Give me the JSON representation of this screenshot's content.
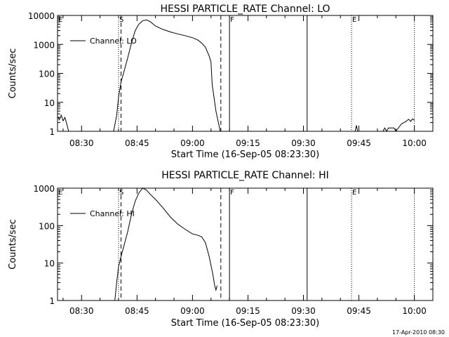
{
  "chart_data": [
    {
      "type": "line",
      "title": "HESSI PARTICLE_RATE Channel: LO",
      "xlabel": "Start Time (16-Sep-05 08:23:30)",
      "ylabel": "Counts/sec",
      "yscale": "log",
      "ylim": [
        1,
        10000
      ],
      "xlim": [
        "08:23:30",
        "10:05:00"
      ],
      "x_ticks": [
        "08:30",
        "08:45",
        "09:00",
        "09:15",
        "09:30",
        "09:45",
        "10:00"
      ],
      "y_ticks": [
        "1",
        "10",
        "100",
        "1000",
        "10000"
      ],
      "legend": {
        "text": "Channel: LO",
        "placement": "top-left"
      },
      "markers": [
        {
          "label": "E",
          "time": "08:23:30",
          "style": "dotted"
        },
        {
          "label": "S",
          "time": "08:40:00",
          "style": "dotted"
        },
        {
          "label": "",
          "time": "08:40:40",
          "style": "dashed"
        },
        {
          "label": "",
          "time": "09:07:40",
          "style": "dashed"
        },
        {
          "label": "F",
          "time": "09:10:00",
          "style": "solid"
        },
        {
          "label": "",
          "time": "09:31:00",
          "style": "solid"
        },
        {
          "label": "E",
          "time": "09:43:00",
          "style": "dotted"
        },
        {
          "label": "",
          "time": "10:00:00",
          "style": "dotted"
        }
      ],
      "series": [
        {
          "name": "Channel: LO",
          "segments": [
            [
              [
                "08:23:30",
                3.3
              ],
              [
                "08:24:00",
                2.5
              ],
              [
                "08:24:30",
                3.6
              ],
              [
                "08:25:00",
                2.3
              ],
              [
                "08:25:30",
                3.0
              ],
              [
                "08:26:00",
                1.8
              ],
              [
                "08:26:30",
                1.0
              ]
            ],
            [
              [
                "08:38:40",
                1.0
              ],
              [
                "08:39:30",
                3.5
              ],
              [
                "08:40:00",
                15
              ],
              [
                "08:40:40",
                50
              ],
              [
                "08:41:30",
                120
              ],
              [
                "08:42:30",
                350
              ],
              [
                "08:43:30",
                1100
              ],
              [
                "08:44:30",
                3000
              ],
              [
                "08:45:30",
                5000
              ],
              [
                "08:46:30",
                6500
              ],
              [
                "08:47:30",
                7000
              ],
              [
                "08:48:30",
                6200
              ],
              [
                "08:50:00",
                4300
              ],
              [
                "08:52:00",
                3300
              ],
              [
                "08:54:00",
                2700
              ],
              [
                "08:56:00",
                2300
              ],
              [
                "08:58:00",
                2000
              ],
              [
                "09:00:00",
                1700
              ],
              [
                "09:01:30",
                1400
              ],
              [
                "09:02:30",
                1100
              ],
              [
                "09:03:30",
                800
              ],
              [
                "09:04:30",
                400
              ],
              [
                "09:05:00",
                250
              ],
              [
                "09:05:20",
                40
              ],
              [
                "09:05:40",
                20
              ],
              [
                "09:06:20",
                5
              ],
              [
                "09:07:00",
                2
              ],
              [
                "09:07:30",
                1.0
              ]
            ],
            [
              [
                "09:44:00",
                1.0
              ],
              [
                "09:44:20",
                1.6
              ],
              [
                "09:44:40",
                1.0
              ]
            ],
            [
              [
                "09:51:30",
                1.0
              ],
              [
                "09:52:00",
                1.3
              ],
              [
                "09:52:30",
                1.0
              ],
              [
                "09:53:00",
                1.3
              ],
              [
                "09:54:30",
                1.3
              ],
              [
                "09:55:00",
                1.0
              ],
              [
                "09:56:30",
                1.8
              ],
              [
                "09:57:30",
                2.1
              ],
              [
                "09:58:30",
                2.6
              ],
              [
                "09:59:00",
                2.2
              ],
              [
                "09:59:30",
                2.7
              ],
              [
                "10:00:00",
                2.4
              ]
            ]
          ]
        }
      ]
    },
    {
      "type": "line",
      "title": "HESSI PARTICLE_RATE Channel: HI",
      "xlabel": "Start Time (16-Sep-05 08:23:30)",
      "ylabel": "Counts/sec",
      "yscale": "log",
      "ylim": [
        1,
        1000
      ],
      "xlim": [
        "08:23:30",
        "10:05:00"
      ],
      "x_ticks": [
        "08:30",
        "08:45",
        "09:00",
        "09:15",
        "09:30",
        "09:45",
        "10:00"
      ],
      "y_ticks": [
        "1",
        "10",
        "100",
        "1000"
      ],
      "legend": {
        "text": "Channel: HI",
        "placement": "top-left"
      },
      "markers": [
        {
          "label": "E",
          "time": "08:23:30",
          "style": "dotted"
        },
        {
          "label": "S",
          "time": "08:40:00",
          "style": "dotted"
        },
        {
          "label": "",
          "time": "08:40:40",
          "style": "dashed"
        },
        {
          "label": "",
          "time": "09:07:40",
          "style": "dashed"
        },
        {
          "label": "F",
          "time": "09:10:00",
          "style": "solid"
        },
        {
          "label": "",
          "time": "09:31:00",
          "style": "solid"
        },
        {
          "label": "E",
          "time": "09:43:00",
          "style": "dotted"
        },
        {
          "label": "",
          "time": "10:00:00",
          "style": "dotted"
        }
      ],
      "series": [
        {
          "name": "Channel: HI",
          "segments": [
            [
              [
                "08:39:00",
                1.0
              ],
              [
                "08:39:30",
                3.0
              ],
              [
                "08:40:00",
                8
              ],
              [
                "08:40:40",
                15
              ],
              [
                "08:41:30",
                30
              ],
              [
                "08:42:30",
                70
              ],
              [
                "08:43:30",
                200
              ],
              [
                "08:44:30",
                450
              ],
              [
                "08:45:30",
                750
              ],
              [
                "08:46:30",
                1000
              ],
              [
                "08:47:30",
                900
              ],
              [
                "08:48:30",
                700
              ],
              [
                "08:50:00",
                500
              ],
              [
                "08:52:00",
                300
              ],
              [
                "08:54:00",
                170
              ],
              [
                "08:56:00",
                110
              ],
              [
                "08:58:00",
                80
              ],
              [
                "09:00:00",
                60
              ],
              [
                "09:01:30",
                55
              ],
              [
                "09:02:30",
                50
              ],
              [
                "09:03:30",
                35
              ],
              [
                "09:04:30",
                15
              ],
              [
                "09:05:30",
                5
              ],
              [
                "09:06:00",
                2.5
              ],
              [
                "09:06:20",
                1.9
              ],
              [
                "09:06:40",
                2.5
              ]
            ]
          ]
        }
      ]
    }
  ],
  "footer": {
    "timestamp": "17-Apr-2010 08:30"
  }
}
